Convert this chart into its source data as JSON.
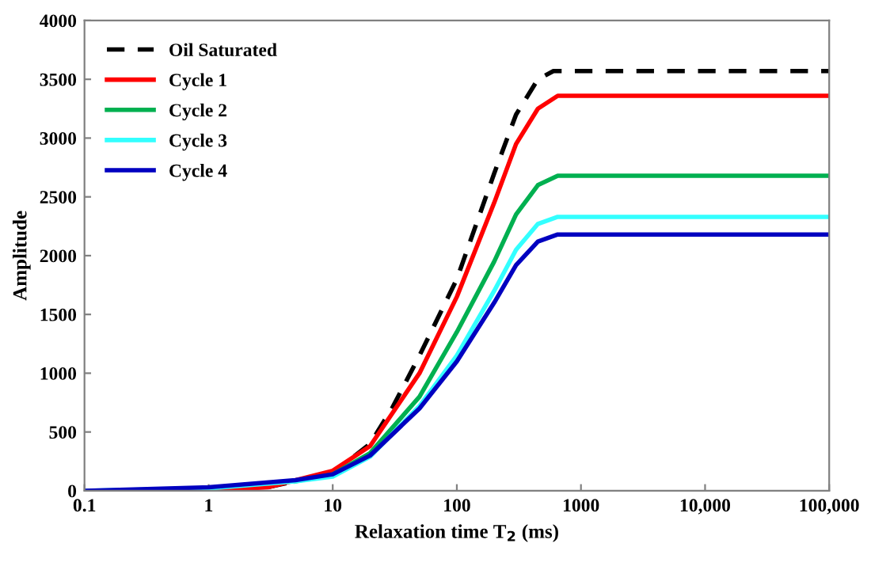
{
  "chart_data": {
    "type": "line",
    "xlabel": "Relaxation time T$_{2}$ (ms)",
    "ylabel": "Amplitude",
    "log": "x",
    "xlim": [
      0.1,
      100000
    ],
    "xticks": [
      0.1,
      1,
      10,
      100,
      1000,
      {
        "value": 10000,
        "label": "10,000"
      },
      {
        "value": 100000,
        "label": "100,000"
      }
    ],
    "ylim": [
      0,
      4000
    ],
    "yticks": [
      0,
      500,
      1000,
      1500,
      2000,
      2500,
      3000,
      3500,
      4000
    ],
    "grid": false,
    "legend": "top left",
    "marker": "none",
    "series": [
      {
        "name": "Oil Saturated",
        "color": "#000000",
        "line_style": "dashed",
        "x": [
          0.1,
          1,
          3,
          10,
          20,
          30,
          50,
          100,
          200,
          300,
          450,
          600,
          1000,
          100000
        ],
        "values": [
          0,
          0,
          30,
          150,
          400,
          700,
          1150,
          1800,
          2700,
          3200,
          3500,
          3570,
          3570,
          3570
        ]
      },
      {
        "name": "Cycle 1",
        "color": "#ff0000",
        "line_style": "solid",
        "x": [
          0.1,
          1,
          3,
          10,
          20,
          50,
          100,
          200,
          300,
          450,
          650,
          100000
        ],
        "values": [
          0,
          0,
          30,
          170,
          380,
          1000,
          1650,
          2450,
          2950,
          3250,
          3360,
          3360
        ]
      },
      {
        "name": "Cycle 2",
        "color": "#00b050",
        "line_style": "solid",
        "x": [
          5,
          10,
          20,
          50,
          100,
          200,
          300,
          450,
          650,
          100000
        ],
        "values": [
          80,
          140,
          320,
          800,
          1350,
          1950,
          2350,
          2600,
          2680,
          2680
        ]
      },
      {
        "name": "Cycle 3",
        "color": "#33ffff",
        "line_style": "solid",
        "x": [
          0.1,
          1,
          5,
          10,
          20,
          50,
          100,
          200,
          300,
          450,
          650,
          100000
        ],
        "values": [
          0,
          20,
          80,
          120,
          290,
          720,
          1150,
          1700,
          2050,
          2270,
          2330,
          2330
        ]
      },
      {
        "name": "Cycle 4",
        "color": "#0000c0",
        "line_style": "solid",
        "x": [
          0.1,
          1,
          5,
          10,
          20,
          50,
          100,
          200,
          300,
          450,
          650,
          100000
        ],
        "values": [
          0,
          30,
          90,
          140,
          300,
          700,
          1100,
          1600,
          1920,
          2120,
          2180,
          2180
        ]
      }
    ]
  }
}
